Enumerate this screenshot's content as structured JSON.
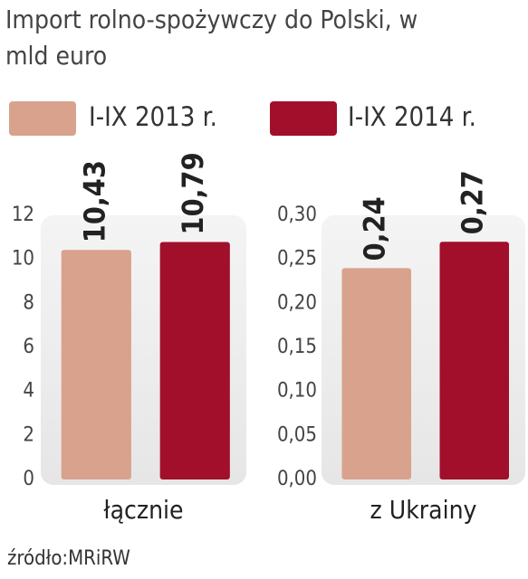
{
  "title": "Import rolno-spożywczy do Polski, w mld euro",
  "source": "źródło:MRiRW",
  "chart_data": [
    {
      "type": "bar",
      "categories": [
        "łącznie"
      ],
      "series": [
        {
          "name": "I-IX 2013 r.",
          "color": "#d8a28d",
          "values": [
            10.43
          ],
          "value_labels": [
            "10,43"
          ]
        },
        {
          "name": "I-IX 2014 r.",
          "color": "#a10f2b",
          "values": [
            10.79
          ],
          "value_labels": [
            "10,79"
          ]
        }
      ],
      "ylim": [
        0,
        12
      ],
      "yticks": [
        0,
        2,
        4,
        6,
        8,
        10,
        12
      ]
    },
    {
      "type": "bar",
      "categories": [
        "z Ukrainy"
      ],
      "series": [
        {
          "color": "#d8a28d",
          "values": [
            0.24
          ],
          "value_labels": [
            "0,24"
          ]
        },
        {
          "color": "#a10f2b",
          "values": [
            0.27
          ],
          "value_labels": [
            "0,27"
          ]
        }
      ],
      "ylim": [
        0,
        0.3
      ],
      "yticks": [
        {
          "value": 0,
          "label": "0,00"
        },
        {
          "value": 0.05,
          "label": "0,05"
        },
        {
          "value": 0.1,
          "label": "0,10"
        },
        {
          "value": 0.15,
          "label": "0,15"
        },
        {
          "value": 0.2,
          "label": "0,20"
        },
        {
          "value": 0.25,
          "label": "0,25"
        },
        {
          "value": 0.3,
          "label": "0,30"
        }
      ]
    }
  ]
}
